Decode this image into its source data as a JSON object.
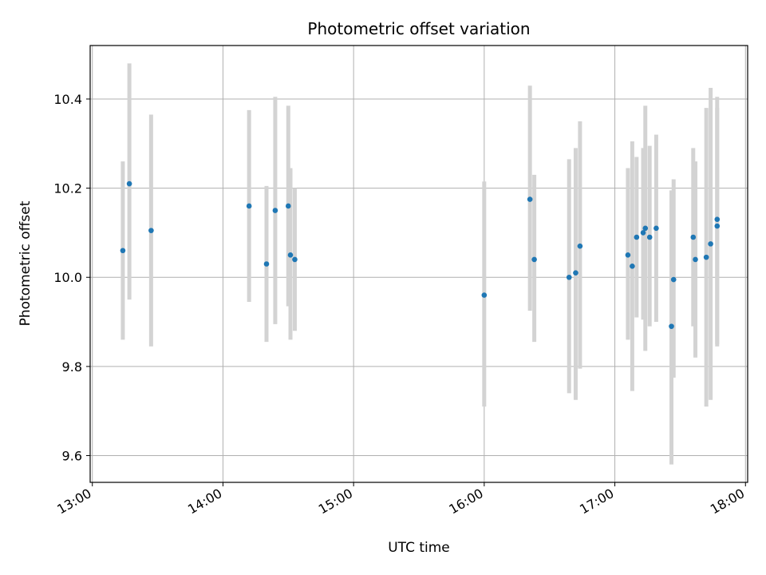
{
  "chart_data": {
    "type": "scatter",
    "title": "Photometric offset variation",
    "xlabel": "UTC time",
    "ylabel": "Photometric offset",
    "xlim": [
      "12:59",
      "18:01"
    ],
    "ylim": [
      9.54,
      10.52
    ],
    "x_ticks": [
      "13:00",
      "14:00",
      "15:00",
      "16:00",
      "17:00",
      "18:00"
    ],
    "y_ticks": [
      9.6,
      9.8,
      10.0,
      10.2,
      10.4
    ],
    "grid": true,
    "point_color": "#1f77b4",
    "errorbar_color": "#d3d3d3",
    "points": [
      {
        "x": "13:14",
        "y": 10.06,
        "ylow": 9.86,
        "yhigh": 10.26
      },
      {
        "x": "13:17",
        "y": 10.21,
        "ylow": 9.95,
        "yhigh": 10.48
      },
      {
        "x": "13:27",
        "y": 10.105,
        "ylow": 9.845,
        "yhigh": 10.365
      },
      {
        "x": "14:12",
        "y": 10.16,
        "ylow": 9.945,
        "yhigh": 10.375
      },
      {
        "x": "14:20",
        "y": 10.03,
        "ylow": 9.855,
        "yhigh": 10.205
      },
      {
        "x": "14:24",
        "y": 10.15,
        "ylow": 9.895,
        "yhigh": 10.405
      },
      {
        "x": "14:30",
        "y": 10.16,
        "ylow": 9.935,
        "yhigh": 10.385
      },
      {
        "x": "14:31",
        "y": 10.05,
        "ylow": 9.86,
        "yhigh": 10.245
      },
      {
        "x": "14:33",
        "y": 10.04,
        "ylow": 9.88,
        "yhigh": 10.2
      },
      {
        "x": "16:00",
        "y": 9.96,
        "ylow": 9.71,
        "yhigh": 10.215
      },
      {
        "x": "16:21",
        "y": 10.175,
        "ylow": 9.925,
        "yhigh": 10.43
      },
      {
        "x": "16:23",
        "y": 10.04,
        "ylow": 9.855,
        "yhigh": 10.23
      },
      {
        "x": "16:39",
        "y": 10.0,
        "ylow": 9.74,
        "yhigh": 10.265
      },
      {
        "x": "16:42",
        "y": 10.01,
        "ylow": 9.725,
        "yhigh": 10.29
      },
      {
        "x": "16:44",
        "y": 10.07,
        "ylow": 9.795,
        "yhigh": 10.35
      },
      {
        "x": "17:06",
        "y": 10.05,
        "ylow": 9.86,
        "yhigh": 10.245
      },
      {
        "x": "17:08",
        "y": 10.025,
        "ylow": 9.745,
        "yhigh": 10.305
      },
      {
        "x": "17:10",
        "y": 10.09,
        "ylow": 9.91,
        "yhigh": 10.27
      },
      {
        "x": "17:13",
        "y": 10.1,
        "ylow": 9.905,
        "yhigh": 10.29
      },
      {
        "x": "17:14",
        "y": 10.11,
        "ylow": 9.835,
        "yhigh": 10.385
      },
      {
        "x": "17:16",
        "y": 10.09,
        "ylow": 9.89,
        "yhigh": 10.295
      },
      {
        "x": "17:19",
        "y": 10.11,
        "ylow": 9.9,
        "yhigh": 10.32
      },
      {
        "x": "17:26",
        "y": 9.89,
        "ylow": 9.58,
        "yhigh": 10.195
      },
      {
        "x": "17:27",
        "y": 9.995,
        "ylow": 9.775,
        "yhigh": 10.22
      },
      {
        "x": "17:36",
        "y": 10.09,
        "ylow": 9.89,
        "yhigh": 10.29
      },
      {
        "x": "17:37",
        "y": 10.04,
        "ylow": 9.82,
        "yhigh": 10.26
      },
      {
        "x": "17:42",
        "y": 10.045,
        "ylow": 9.71,
        "yhigh": 10.38
      },
      {
        "x": "17:44",
        "y": 10.075,
        "ylow": 9.725,
        "yhigh": 10.425
      },
      {
        "x": "17:47",
        "y": 10.13,
        "ylow": 9.845,
        "yhigh": 10.405
      },
      {
        "x": "17:47",
        "y": 10.115,
        "ylow": 9.85,
        "yhigh": 10.38
      }
    ]
  }
}
